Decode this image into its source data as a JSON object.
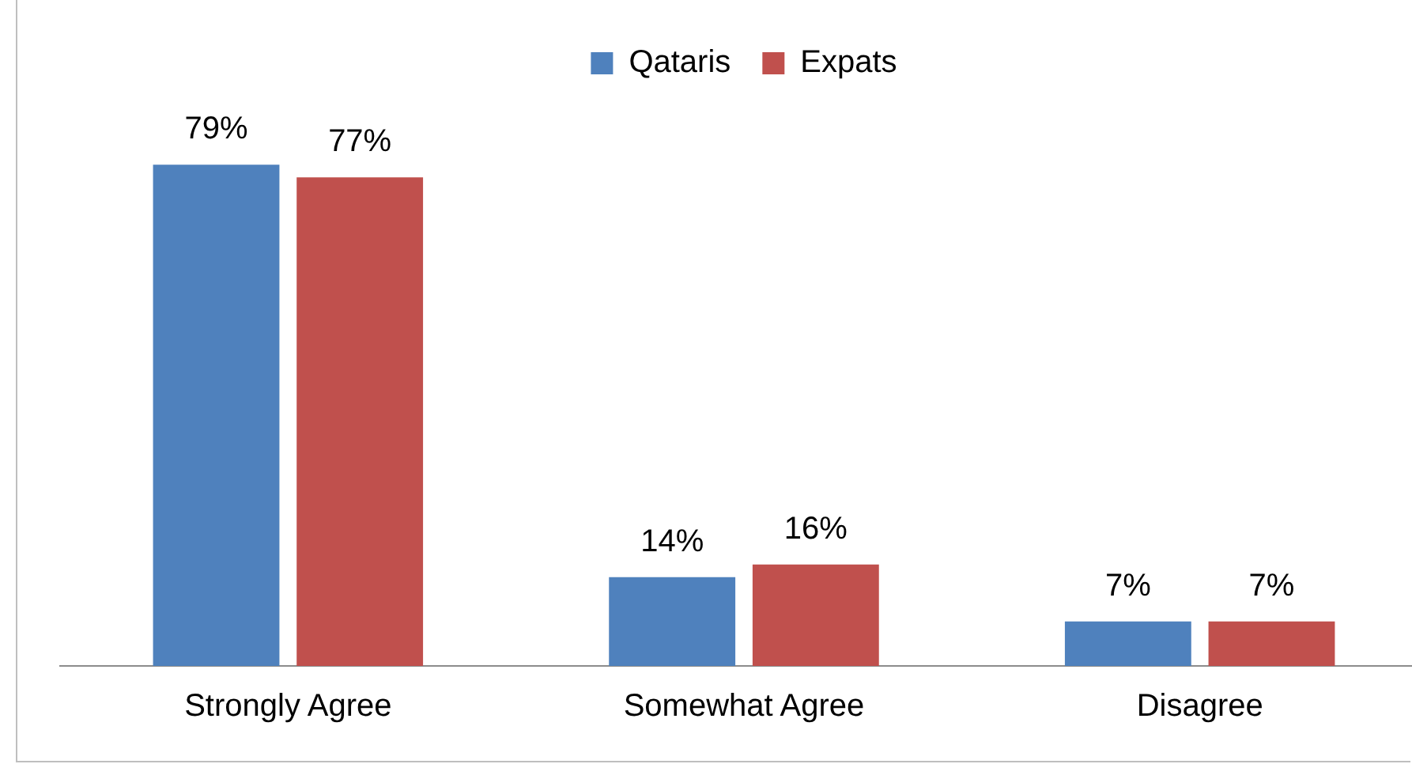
{
  "chart_data": {
    "type": "bar",
    "categories": [
      "Strongly Agree",
      "Somewhat Agree",
      "Disagree"
    ],
    "series": [
      {
        "name": "Qataris",
        "color": "#4f81bd",
        "values": [
          79,
          14,
          7
        ],
        "value_labels": [
          "79%",
          "14%",
          "7%"
        ]
      },
      {
        "name": "Expats",
        "color": "#c0504d",
        "values": [
          77,
          16,
          7
        ],
        "value_labels": [
          "77%",
          "16%",
          "7%"
        ]
      }
    ],
    "legend": "top",
    "grid": false
  }
}
